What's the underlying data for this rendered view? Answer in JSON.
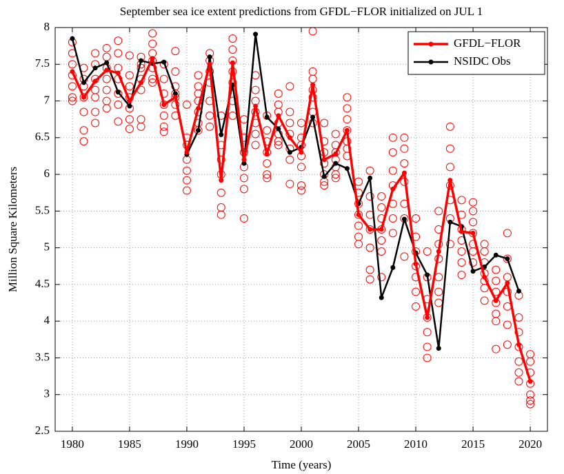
{
  "chart_data": {
    "type": "line",
    "title": "September sea ice extent predictions from GFDL−FLOR initialized on JUL 1",
    "xlabel": "Time (years)",
    "ylabel": "Million Square Kilometers",
    "x": [
      1980,
      1981,
      1982,
      1983,
      1984,
      1985,
      1986,
      1987,
      1988,
      1989,
      1990,
      1991,
      1992,
      1993,
      1994,
      1995,
      1996,
      1997,
      1998,
      1999,
      2000,
      2001,
      2002,
      2003,
      2004,
      2005,
      2006,
      2007,
      2008,
      2009,
      2010,
      2011,
      2012,
      2013,
      2014,
      2015,
      2016,
      2017,
      2018,
      2019,
      2020
    ],
    "series": [
      {
        "name": "GFDL−FLOR",
        "color": "#ff0000",
        "values": [
          7.4,
          7.05,
          7.27,
          7.42,
          7.38,
          7.0,
          7.25,
          7.58,
          6.95,
          7.05,
          6.3,
          6.9,
          7.5,
          5.92,
          7.52,
          6.2,
          6.93,
          6.28,
          6.8,
          6.5,
          6.3,
          7.22,
          6.2,
          6.28,
          6.6,
          5.45,
          5.25,
          5.25,
          5.8,
          6.02,
          4.78,
          4.05,
          4.95,
          5.92,
          5.22,
          5.2,
          4.6,
          4.28,
          4.52,
          3.68,
          3.18
        ]
      },
      {
        "name": "NSIDC Obs",
        "color": "#000000",
        "values": [
          7.85,
          7.25,
          7.45,
          7.52,
          7.12,
          6.93,
          7.55,
          7.51,
          7.53,
          7.1,
          6.27,
          6.6,
          7.6,
          6.54,
          7.22,
          6.15,
          7.91,
          6.78,
          6.62,
          6.3,
          6.37,
          6.78,
          5.97,
          6.15,
          6.08,
          5.6,
          5.95,
          4.32,
          4.73,
          5.39,
          4.93,
          4.63,
          3.63,
          5.35,
          5.29,
          4.68,
          4.74,
          4.9,
          4.85,
          4.41,
          null
        ]
      }
    ],
    "ensemble_color": "#ff0000",
    "ensemble": [
      [
        7.8,
        7.65,
        7.5,
        7.35,
        7.2,
        7.05,
        7.0
      ],
      [
        7.45,
        7.3,
        7.05,
        6.85,
        6.6,
        6.45,
        7.2
      ],
      [
        7.65,
        7.5,
        7.3,
        7.15,
        7.05,
        6.85,
        6.7
      ],
      [
        7.72,
        7.6,
        7.45,
        7.3,
        7.15,
        7.0,
        6.9
      ],
      [
        7.82,
        7.65,
        7.45,
        7.3,
        7.1,
        6.95,
        6.72
      ],
      [
        7.35,
        7.2,
        7.05,
        6.9,
        6.75,
        6.62,
        7.62
      ],
      [
        7.6,
        7.45,
        7.3,
        7.15,
        6.75,
        6.65,
        7.5
      ],
      [
        7.92,
        7.78,
        7.65,
        7.55,
        7.45,
        7.3,
        7.25
      ],
      [
        7.5,
        7.3,
        7.1,
        6.95,
        6.8,
        6.65,
        6.58
      ],
      [
        7.68,
        7.4,
        7.2,
        7.05,
        6.95,
        6.8,
        7.1
      ],
      [
        6.95,
        6.5,
        6.4,
        6.2,
        6.05,
        5.92,
        5.78
      ],
      [
        7.35,
        7.2,
        7.0,
        6.85,
        6.7,
        6.6,
        7.1
      ],
      [
        7.65,
        7.55,
        7.4,
        7.25,
        7.0,
        6.8,
        6.65
      ],
      [
        6.8,
        6.4,
        6.2,
        6.0,
        5.75,
        5.55,
        5.45
      ],
      [
        7.85,
        7.7,
        7.55,
        7.4,
        7.25,
        7.0,
        6.8
      ],
      [
        6.75,
        6.5,
        6.3,
        6.1,
        5.95,
        5.8,
        5.4
      ],
      [
        7.35,
        7.15,
        7.0,
        6.85,
        6.7,
        6.55,
        6.4
      ],
      [
        6.8,
        6.6,
        6.45,
        6.3,
        6.15,
        6.0,
        5.95
      ],
      [
        7.1,
        6.95,
        6.85,
        6.7,
        6.55,
        6.45,
        6.4
      ],
      [
        7.2,
        6.85,
        6.7,
        6.55,
        6.35,
        6.2,
        5.87
      ],
      [
        6.7,
        6.5,
        6.4,
        6.25,
        6.1,
        5.85,
        5.78
      ],
      [
        7.95,
        7.4,
        7.3,
        7.15,
        7.05,
        6.85,
        6.7
      ],
      [
        6.7,
        6.45,
        6.3,
        6.15,
        6.0,
        5.9,
        5.85
      ],
      [
        6.55,
        6.4,
        6.3,
        6.2,
        6.1,
        6.0,
        5.95
      ],
      [
        7.05,
        6.9,
        6.75,
        6.6,
        6.45,
        6.35,
        6.25
      ],
      [
        5.9,
        5.75,
        5.6,
        5.45,
        5.3,
        5.15,
        5.05
      ],
      [
        6.05,
        5.7,
        5.45,
        5.25,
        5.0,
        4.7,
        4.57
      ],
      [
        5.7,
        5.55,
        5.4,
        5.25,
        5.1,
        4.95,
        4.6
      ],
      [
        6.5,
        6.3,
        6.05,
        5.85,
        5.6,
        5.4,
        5.2
      ],
      [
        6.5,
        6.35,
        6.15,
        5.9,
        5.6,
        5.4,
        4.88
      ],
      [
        5.4,
        5.15,
        4.95,
        4.75,
        4.6,
        4.4,
        4.2
      ],
      [
        4.95,
        4.6,
        4.3,
        4.05,
        3.85,
        3.65,
        3.5
      ],
      [
        5.5,
        5.25,
        5.05,
        4.85,
        4.6,
        4.4,
        4.25
      ],
      [
        6.65,
        6.35,
        6.1,
        5.85,
        5.65,
        5.4,
        5.05
      ],
      [
        5.65,
        5.45,
        5.25,
        5.1,
        4.95,
        4.8,
        4.63
      ],
      [
        5.62,
        5.5,
        5.35,
        5.2,
        5.05,
        4.95,
        4.8
      ],
      [
        5.05,
        4.95,
        4.8,
        4.65,
        4.55,
        4.45,
        4.28
      ],
      [
        4.7,
        4.55,
        4.4,
        4.25,
        4.1,
        4.0,
        3.62
      ],
      [
        5.2,
        4.85,
        4.6,
        4.4,
        4.2,
        3.95,
        3.68
      ],
      [
        4.35,
        4.05,
        3.85,
        3.65,
        3.45,
        3.3,
        3.18
      ],
      [
        3.55,
        3.45,
        3.3,
        3.15,
        3.0,
        2.92,
        2.87
      ]
    ],
    "xlim": [
      1978.5,
      2021.5
    ],
    "ylim": [
      2.5,
      8
    ],
    "xticks": [
      1980,
      1985,
      1990,
      1995,
      2000,
      2005,
      2010,
      2015,
      2020
    ],
    "yticks": [
      2.5,
      3,
      3.5,
      4,
      4.5,
      5,
      5.5,
      6,
      6.5,
      7,
      7.5,
      8
    ],
    "grid": true,
    "legend": "upper-right"
  }
}
